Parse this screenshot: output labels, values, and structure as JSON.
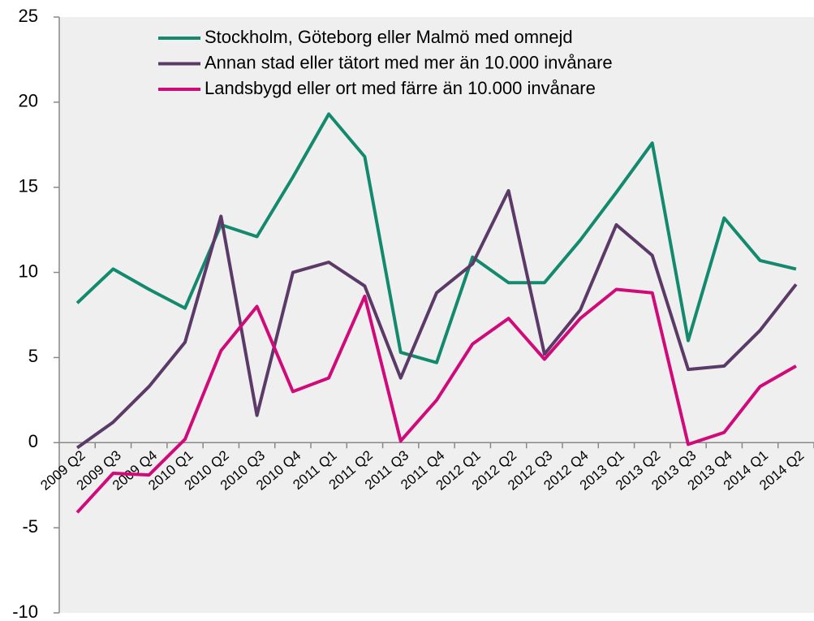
{
  "chart_data": {
    "type": "line",
    "categories": [
      "2009 Q2",
      "2009 Q3",
      "2009 Q4",
      "2010 Q1",
      "2010 Q2",
      "2010 Q3",
      "2010 Q4",
      "2011 Q1",
      "2011 Q2",
      "2011 Q3",
      "2011 Q4",
      "2012 Q1",
      "2012 Q2",
      "2012 Q3",
      "2012 Q4",
      "2013 Q1",
      "2013 Q2",
      "2013  Q3",
      "2013 Q4",
      "2014 Q1",
      "2014 Q2"
    ],
    "series": [
      {
        "name": "Stockholm, Göteborg eller Malmö med omnejd",
        "color": "#138a6d",
        "values": [
          8.2,
          10.2,
          9.0,
          7.9,
          12.8,
          12.1,
          15.6,
          19.3,
          16.8,
          5.3,
          4.7,
          10.9,
          9.4,
          9.4,
          11.9,
          14.7,
          17.6,
          6.0,
          13.2,
          10.7,
          10.2
        ]
      },
      {
        "name": "Annan stad eller tätort med mer än 10.000 invånare",
        "color": "#5b3a68",
        "values": [
          -0.3,
          1.2,
          3.3,
          5.9,
          13.3,
          1.6,
          10.0,
          10.6,
          9.2,
          3.8,
          8.8,
          10.5,
          14.8,
          5.2,
          7.8,
          12.8,
          11.0,
          4.3,
          4.5,
          6.6,
          9.3
        ]
      },
      {
        "name": "Landsbygd eller ort med färre än 10.000 invånare",
        "color": "#d10a7a",
        "values": [
          -4.1,
          -1.8,
          -1.9,
          0.2,
          5.4,
          8.0,
          3.0,
          3.8,
          8.6,
          0.1,
          2.5,
          5.8,
          7.3,
          4.9,
          7.3,
          9.0,
          8.8,
          -0.1,
          0.6,
          3.3,
          4.5
        ]
      }
    ],
    "ylim": [
      -10,
      25
    ],
    "yticks": [
      -10,
      -5,
      0,
      5,
      10,
      15,
      20,
      25
    ]
  }
}
